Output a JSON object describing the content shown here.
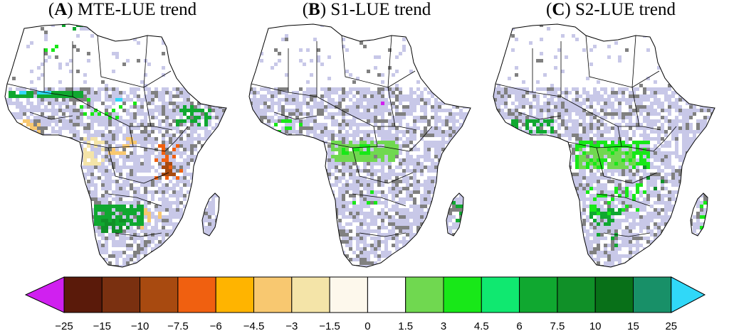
{
  "panels": [
    {
      "letter": "A",
      "title": "MTE-LUE trend",
      "variant": "mte"
    },
    {
      "letter": "B",
      "title": "S1-LUE trend",
      "variant": "s1"
    },
    {
      "letter": "C",
      "title": "S2-LUE trend",
      "variant": "s2"
    }
  ],
  "colorbar": {
    "ticks": [
      "−25",
      "−15",
      "−10",
      "−7.5",
      "−6",
      "−4.5",
      "−3",
      "−1.5",
      "0",
      "1.5",
      "3",
      "4.5",
      "6",
      "7.5",
      "10",
      "15",
      "25"
    ],
    "colors": [
      "#5a1a0a",
      "#7a3010",
      "#a84a10",
      "#f06010",
      "#ffb400",
      "#f8c870",
      "#f4e4a8",
      "#fdf8ec",
      "#ffffff",
      "#70d850",
      "#18e818",
      "#10e870",
      "#10a830",
      "#109028",
      "#087018",
      "#189068"
    ],
    "under_color": "#d020f0",
    "over_color": "#30d8f8"
  },
  "map_colors": {
    "land": "#ffffff",
    "no_trend": "#c8c8e8",
    "nonsignificant": "#808080",
    "border": "#000000"
  }
}
